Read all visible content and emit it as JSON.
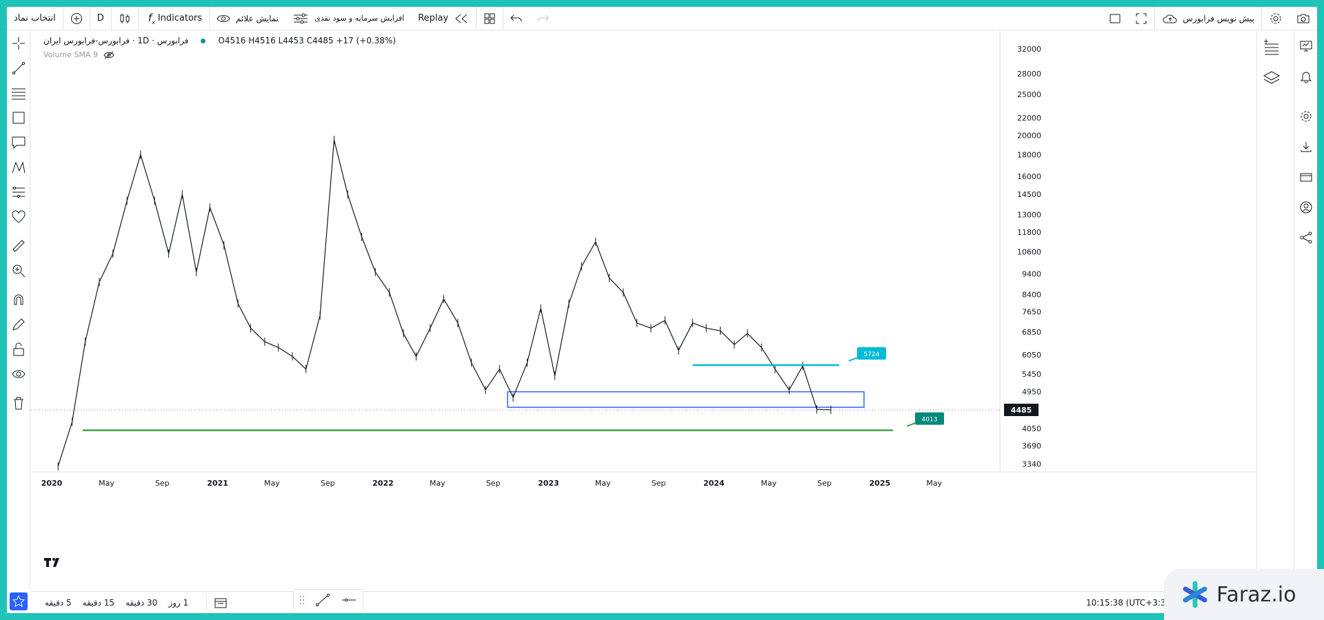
{
  "toolbar": {
    "symbol_search": "انتخاب نماد",
    "interval": "D",
    "indicators": "Indicators",
    "show_signals": "نمایش علائم",
    "capital_increase": "افزایش سرمایه و سود نقدی",
    "replay": "Replay",
    "forecast": "پیش نویس فرابورس"
  },
  "legend": {
    "title": "فرابورس · 1D · فرابورس-فرابورس ایران",
    "ohlc": "O4516 H4516 L4453 C4485 +17 (+0.38%)",
    "volume": "Volume SMA 9"
  },
  "bottom": {
    "ranges": [
      "5 دقیقه",
      "15 دقیقه",
      "30 دقیقه",
      "1 روز"
    ],
    "clock": "10:15:38 (UTC+3:30)"
  },
  "watermark": "Faraz.io",
  "colors": {
    "accent": "#2962ff",
    "cyan": "#00bcd4",
    "green": "#43a047",
    "teal": "#089981",
    "frame": "#1fc3b8"
  },
  "chart_data": {
    "type": "line",
    "scale": "log",
    "ylim": [
      3200,
      34000
    ],
    "price_ticks": [
      32000,
      28000,
      25000,
      22000,
      20000,
      18000,
      16000,
      14500,
      13000,
      11800,
      10600,
      9400,
      8400,
      7650,
      6850,
      6050,
      5450,
      4950,
      4050,
      3690,
      3340
    ],
    "last_price": 4485,
    "time_labels": [
      "2020",
      "May",
      "Sep",
      "2021",
      "May",
      "Sep",
      "2022",
      "May",
      "Sep",
      "2023",
      "May",
      "Sep",
      "2024",
      "May",
      "Sep",
      "2025",
      "May"
    ],
    "series": [
      {
        "values": [
          [
            "2020-01",
            3300
          ],
          [
            "2020-02",
            4200
          ],
          [
            "2020-03",
            6500
          ],
          [
            "2020-04",
            9000
          ],
          [
            "2020-05",
            10500
          ],
          [
            "2020-06",
            14000
          ],
          [
            "2020-07",
            18000
          ],
          [
            "2020-08",
            14000
          ],
          [
            "2020-09",
            10500
          ],
          [
            "2020-10",
            14500
          ],
          [
            "2020-11",
            9500
          ],
          [
            "2020-12",
            13500
          ],
          [
            "2021-01",
            11000
          ],
          [
            "2021-02",
            8000
          ],
          [
            "2021-03",
            7000
          ],
          [
            "2021-04",
            6500
          ],
          [
            "2021-05",
            6300
          ],
          [
            "2021-06",
            6000
          ],
          [
            "2021-07",
            5600
          ],
          [
            "2021-08",
            7500
          ],
          [
            "2021-09",
            19500
          ],
          [
            "2021-10",
            14500
          ],
          [
            "2021-11",
            11500
          ],
          [
            "2021-12",
            9500
          ],
          [
            "2022-01",
            8500
          ],
          [
            "2022-02",
            6800
          ],
          [
            "2022-03",
            6000
          ],
          [
            "2022-04",
            7000
          ],
          [
            "2022-05",
            8200
          ],
          [
            "2022-06",
            7200
          ],
          [
            "2022-07",
            5800
          ],
          [
            "2022-08",
            5000
          ],
          [
            "2022-09",
            5600
          ],
          [
            "2022-10",
            4800
          ],
          [
            "2022-11",
            5800
          ],
          [
            "2022-12",
            7800
          ],
          [
            "2023-01",
            5400
          ],
          [
            "2023-02",
            8000
          ],
          [
            "2023-03",
            9800
          ],
          [
            "2023-04",
            11200
          ],
          [
            "2023-05",
            9200
          ],
          [
            "2023-06",
            8500
          ],
          [
            "2023-07",
            7200
          ],
          [
            "2023-08",
            7000
          ],
          [
            "2023-09",
            7300
          ],
          [
            "2023-10",
            6200
          ],
          [
            "2023-11",
            7200
          ],
          [
            "2023-12",
            7000
          ],
          [
            "2024-01",
            6900
          ],
          [
            "2024-02",
            6400
          ],
          [
            "2024-03",
            6800
          ],
          [
            "2024-04",
            6300
          ],
          [
            "2024-05",
            5600
          ],
          [
            "2024-06",
            5000
          ],
          [
            "2024-07",
            5700
          ],
          [
            "2024-08",
            4500
          ],
          [
            "2024-09",
            4485
          ]
        ]
      }
    ],
    "annotations": [
      {
        "type": "hline",
        "price": 5724,
        "label": "5724",
        "color": "#00bcd4"
      },
      {
        "type": "hline",
        "price": 4013,
        "label": "4013",
        "color": "#43a047"
      },
      {
        "type": "box",
        "price_top": 4950,
        "price_bottom": 4550,
        "color": "#2962ff"
      }
    ]
  }
}
